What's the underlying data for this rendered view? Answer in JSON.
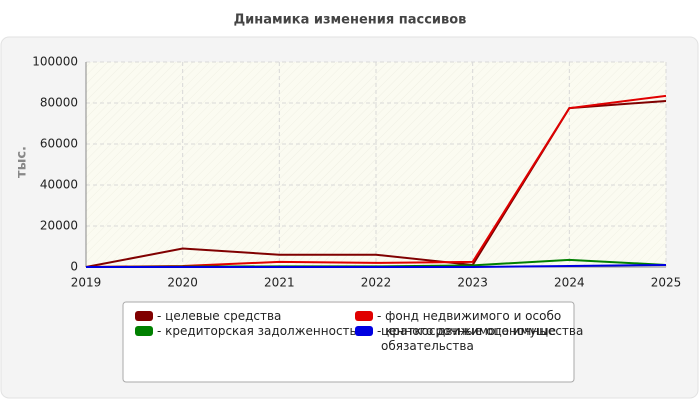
{
  "chart_data": {
    "type": "line",
    "title": "Динамика изменения пассивов",
    "ylabel": "тыс.",
    "x": [
      2019,
      2020,
      2021,
      2022,
      2023,
      2024,
      2025
    ],
    "xlim": [
      2019,
      2025
    ],
    "xticks": [
      2019,
      2020,
      2021,
      2022,
      2023,
      2024,
      2025
    ],
    "ylim": [
      0,
      100000
    ],
    "yticks": [
      0,
      20000,
      40000,
      60000,
      80000,
      100000
    ],
    "grid": true,
    "series": [
      {
        "name": "- целевые средства",
        "color": "#800000",
        "values": [
          0,
          9000,
          6000,
          6000,
          1000,
          77500,
          81000
        ]
      },
      {
        "name": "- фонд недвижимого и особо ценного движимого имущества",
        "color": "#e00000",
        "values": [
          0,
          500,
          2500,
          2000,
          2500,
          77500,
          83500
        ]
      },
      {
        "name": "- кредиторская задолженность",
        "color": "#008000",
        "values": [
          0,
          200,
          300,
          300,
          800,
          3500,
          1000
        ]
      },
      {
        "name": "- краткосрочные оценочные обязательства",
        "color": "#0000e0",
        "values": [
          0,
          0,
          0,
          0,
          0,
          500,
          1000
        ]
      }
    ]
  }
}
